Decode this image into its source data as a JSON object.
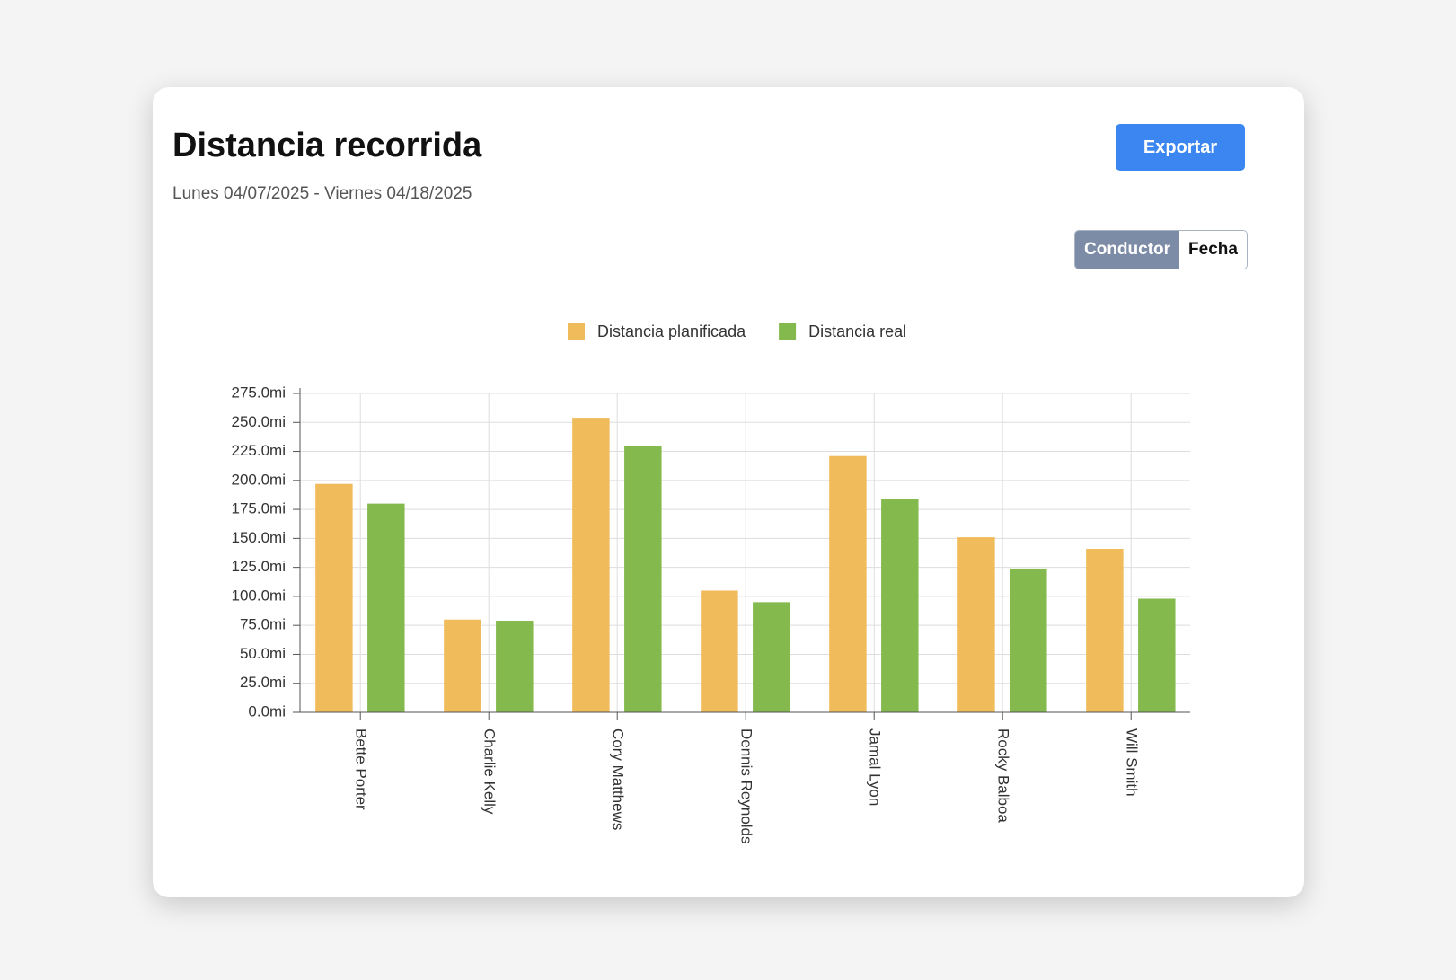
{
  "chart_data": {
    "type": "bar",
    "title": "Distancia recorrida",
    "subtitle": "Lunes 04/07/2025 - Viernes 04/18/2025",
    "categories": [
      "Bette Porter",
      "Charlie Kelly",
      "Cory Matthews",
      "Dennis Reynolds",
      "Jamal Lyon",
      "Rocky Balboa",
      "Will Smith"
    ],
    "series": [
      {
        "name": "Distancia planificada",
        "color": "#f0bb5a",
        "values": [
          197,
          80,
          254,
          105,
          221,
          151,
          141
        ]
      },
      {
        "name": "Distancia real",
        "color": "#84b94e",
        "values": [
          180,
          79,
          230,
          95,
          184,
          124,
          98
        ]
      }
    ],
    "ylim": [
      0,
      275
    ],
    "yticks": [
      {
        "value": 0,
        "label": "0.0mi"
      },
      {
        "value": 25,
        "label": "25.0mi"
      },
      {
        "value": 50,
        "label": "50.0mi"
      },
      {
        "value": 75,
        "label": "75.0mi"
      },
      {
        "value": 100,
        "label": "100.0mi"
      },
      {
        "value": 125,
        "label": "125.0mi"
      },
      {
        "value": 150,
        "label": "150.0mi"
      },
      {
        "value": 175,
        "label": "175.0mi"
      },
      {
        "value": 200,
        "label": "200.0mi"
      },
      {
        "value": 225,
        "label": "225.0mi"
      },
      {
        "value": 250,
        "label": "250.0mi"
      },
      {
        "value": 275,
        "label": "275.0mi"
      }
    ],
    "grid": true,
    "legend": "top"
  },
  "controls": {
    "export": "Exportar",
    "toggle": [
      "Conductor",
      "Fecha"
    ]
  }
}
